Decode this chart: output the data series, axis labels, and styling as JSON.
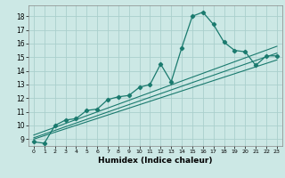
{
  "xlabel": "Humidex (Indice chaleur)",
  "background_color": "#cce8e5",
  "grid_color": "#aacfcc",
  "line_color": "#1a7a6e",
  "xlim": [
    -0.5,
    23.5
  ],
  "ylim": [
    8.5,
    18.8
  ],
  "yticks": [
    9,
    10,
    11,
    12,
    13,
    14,
    15,
    16,
    17,
    18
  ],
  "xticks": [
    0,
    1,
    2,
    3,
    4,
    5,
    6,
    7,
    8,
    9,
    10,
    11,
    12,
    13,
    14,
    15,
    16,
    17,
    18,
    19,
    20,
    21,
    22,
    23
  ],
  "line1_x": [
    0,
    1,
    2,
    3,
    4,
    5,
    6,
    7,
    8,
    9,
    10,
    11,
    12,
    13,
    14,
    15,
    16,
    17,
    18,
    19,
    20,
    21,
    22,
    23
  ],
  "line1_y": [
    8.8,
    8.7,
    10.0,
    10.4,
    10.5,
    11.1,
    11.2,
    11.9,
    12.1,
    12.2,
    12.8,
    13.0,
    14.5,
    13.2,
    15.7,
    18.0,
    18.3,
    17.4,
    16.1,
    15.5,
    15.4,
    14.4,
    15.1,
    15.1
  ],
  "line2_x": [
    0,
    23
  ],
  "line2_y": [
    9.0,
    14.8
  ],
  "line3_x": [
    0,
    23
  ],
  "line3_y": [
    9.1,
    15.3
  ],
  "line4_x": [
    0,
    23
  ],
  "line4_y": [
    9.3,
    15.8
  ]
}
